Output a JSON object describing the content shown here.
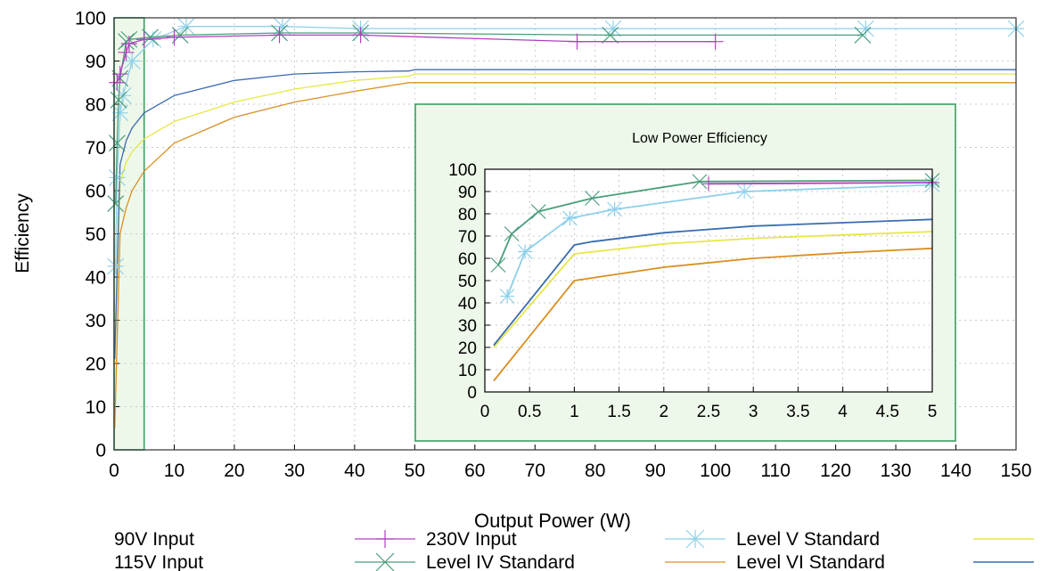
{
  "colors": {
    "v90": "#ff0000",
    "v115": "#0000ff",
    "v230": "#b040c0",
    "level_iv": "#4a9e7a",
    "level_v": "#8fd0ea",
    "level_vi": "#d99020",
    "dark_blue": "#3a6cb0",
    "yellow": "#e6e64a",
    "grid": "#c8c8c8",
    "highlight_fill": "#eef8ea",
    "highlight_stroke": "#3aa060"
  },
  "chart_data": [
    {
      "type": "line",
      "title": "",
      "xlabel": "Output Power (W)",
      "ylabel": "Efficiency",
      "xlim": [
        0,
        150
      ],
      "ylim": [
        0,
        100
      ],
      "xticks": [
        0,
        10,
        20,
        30,
        40,
        50,
        60,
        70,
        80,
        90,
        100,
        110,
        120,
        130,
        140,
        150
      ],
      "yticks": [
        0,
        10,
        20,
        30,
        40,
        50,
        60,
        70,
        80,
        90,
        100
      ],
      "grid": true,
      "highlight_region": {
        "x": [
          0,
          5
        ],
        "y": [
          0,
          100
        ]
      },
      "legend_position": "bottom",
      "legend": [
        {
          "label": "90V Input",
          "color": "v90",
          "marker": "plus"
        },
        {
          "label": "115V Input",
          "color": "v115",
          "marker": "cross"
        },
        {
          "label": "230V Input",
          "color": "v230",
          "marker": "plus"
        },
        {
          "label": "Level IV Standard",
          "color": "level_iv",
          "marker": "cross"
        },
        {
          "label": "Level V Standard",
          "color": "level_v",
          "marker": "star"
        },
        {
          "label": "Level VI Standard",
          "color": "level_vi",
          "marker": "none"
        }
      ],
      "series": [
        {
          "key": "230v",
          "color": "v230",
          "marker": "plus",
          "x": [
            0.5,
            1,
            2,
            2.5,
            5,
            10,
            27.5,
            41,
            77,
            100
          ],
          "y": [
            85,
            87,
            92,
            94,
            95,
            95.5,
            96,
            96,
            94.5,
            94.5
          ]
        },
        {
          "key": "level_iv",
          "color": "level_iv",
          "marker": "cross",
          "x": [
            0.25,
            0.5,
            0.75,
            1,
            2,
            2.5,
            6,
            11,
            27.5,
            41,
            82.5,
            124.5
          ],
          "y": [
            57,
            71,
            81,
            86,
            94.5,
            95,
            95.5,
            96,
            96.5,
            96.5,
            96,
            96
          ]
        },
        {
          "key": "level_v",
          "color": "level_v",
          "marker": "star",
          "x": [
            0.25,
            0.5,
            1,
            1.5,
            3,
            6.5,
            12,
            28,
            41,
            83,
            125,
            150
          ],
          "y": [
            42.5,
            63,
            78,
            82,
            90,
            95,
            98,
            98,
            97.5,
            97.5,
            97.5,
            97.5
          ]
        },
        {
          "key": "level_vi",
          "color": "level_vi",
          "marker": "none",
          "x": [
            0.1,
            1,
            2,
            3,
            5,
            10,
            20,
            30,
            40,
            49,
            50,
            150
          ],
          "y": [
            5,
            50,
            56,
            60,
            64.5,
            71,
            77,
            80.5,
            83,
            85,
            85,
            85
          ]
        },
        {
          "key": "yellow_std",
          "color": "yellow",
          "marker": "none",
          "x": [
            0.1,
            1,
            2,
            3,
            5,
            10,
            20,
            30,
            40,
            49,
            50,
            150
          ],
          "y": [
            20,
            62,
            66.5,
            69,
            72,
            76,
            80.5,
            83.5,
            85.5,
            86.5,
            87,
            87
          ]
        },
        {
          "key": "blue_std",
          "color": "dark_blue",
          "marker": "none",
          "x": [
            0.1,
            1,
            2,
            3,
            5,
            10,
            20,
            30,
            40,
            49,
            50,
            150
          ],
          "y": [
            21,
            66,
            71.5,
            74.5,
            78,
            82,
            85.5,
            87,
            87.5,
            87.7,
            88,
            88
          ]
        }
      ]
    },
    {
      "type": "line",
      "title": "Low Power Efficiency",
      "xlabel": "",
      "ylabel": "",
      "xlim": [
        0,
        5
      ],
      "ylim": [
        0,
        100
      ],
      "xticks": [
        "0",
        "0.5",
        "1",
        "1.5",
        "2",
        "2.5",
        "3",
        "3.5",
        "4",
        "4.5",
        "5"
      ],
      "yticks": [
        0,
        10,
        20,
        30,
        40,
        50,
        60,
        70,
        80,
        90,
        100
      ],
      "grid": true,
      "series": [
        {
          "key": "230v",
          "color": "v230",
          "marker": "plus",
          "x": [
            2.5,
            5
          ],
          "y": [
            93.5,
            94
          ]
        },
        {
          "key": "level_iv",
          "color": "level_iv",
          "marker": "cross",
          "x": [
            0.15,
            0.3,
            0.6,
            1.2,
            2.4,
            5
          ],
          "y": [
            57,
            71,
            81,
            87,
            94.5,
            95
          ]
        },
        {
          "key": "level_v",
          "color": "level_v",
          "marker": "star",
          "x": [
            0.25,
            0.45,
            0.95,
            1.45,
            2.9,
            5
          ],
          "y": [
            43,
            63,
            78,
            82,
            90,
            93
          ]
        },
        {
          "key": "level_vi",
          "color": "level_vi",
          "marker": "none",
          "x": [
            0.1,
            1,
            2,
            3,
            4,
            5
          ],
          "y": [
            5,
            50,
            56,
            60,
            62.5,
            64.5
          ]
        },
        {
          "key": "yellow_std",
          "color": "yellow",
          "marker": "none",
          "x": [
            0.1,
            1,
            2,
            3,
            4,
            5
          ],
          "y": [
            20,
            62,
            66.5,
            69,
            70.5,
            72
          ]
        },
        {
          "key": "blue_std",
          "color": "dark_blue",
          "marker": "none",
          "x": [
            0.1,
            1,
            1.2,
            2,
            3,
            4,
            5
          ],
          "y": [
            21,
            66,
            67.5,
            71.5,
            74.5,
            76,
            77.5
          ]
        }
      ]
    }
  ]
}
